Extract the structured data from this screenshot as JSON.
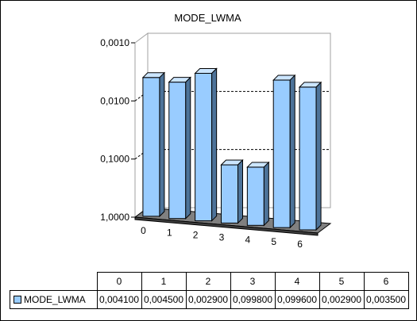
{
  "chart_data": {
    "type": "bar",
    "title": "MODE_LWMA",
    "categories": [
      "0",
      "1",
      "2",
      "3",
      "4",
      "5",
      "6"
    ],
    "series": [
      {
        "name": "MODE_LWMA",
        "values": [
          0.0041,
          0.0045,
          0.0029,
          0.0998,
          0.0996,
          0.0029,
          0.0035
        ],
        "display_values": [
          "0,004100",
          "0,004500",
          "0,002900",
          "0,099800",
          "0,099600",
          "0,002900",
          "0,003500"
        ]
      }
    ],
    "y_axis": {
      "scale": "log",
      "reversed": true,
      "ylim": [
        0.001,
        1
      ],
      "tick_labels": [
        "0,0010",
        "0,0100",
        "0,1000",
        "1,0000"
      ],
      "tick_values": [
        0.001,
        0.01,
        0.1,
        1
      ]
    },
    "grid": true,
    "style": "3d-column",
    "bar_color": "#99ccff",
    "floor_color": "#808080",
    "data_table": true
  }
}
